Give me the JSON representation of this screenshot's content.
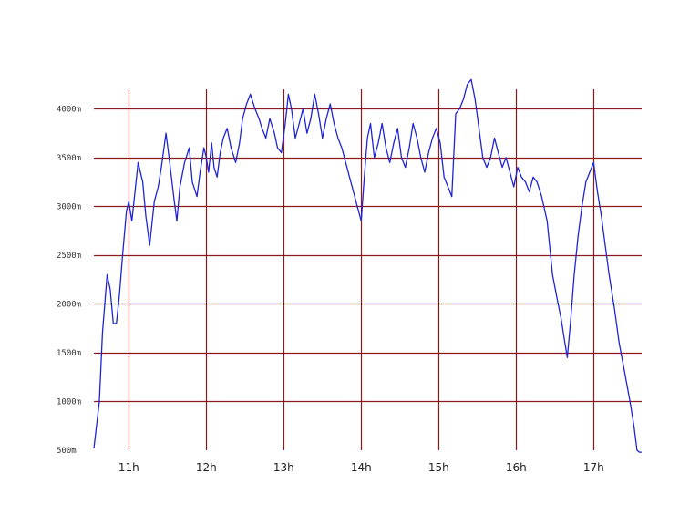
{
  "chart_data": {
    "type": "line",
    "title": "",
    "xlabel": "",
    "ylabel": "",
    "x_unit": "hour",
    "xlim": [
      10.55,
      17.62
    ],
    "ylim": [
      500,
      4200
    ],
    "x_ticks": [
      {
        "value": 11,
        "label": "11h"
      },
      {
        "value": 12,
        "label": "12h"
      },
      {
        "value": 13,
        "label": "13h"
      },
      {
        "value": 14,
        "label": "14h"
      },
      {
        "value": 15,
        "label": "15h"
      },
      {
        "value": 16,
        "label": "16h"
      },
      {
        "value": 17,
        "label": "17h"
      }
    ],
    "y_ticks": [
      {
        "value": 500,
        "label": "500m"
      },
      {
        "value": 1000,
        "label": "1000m"
      },
      {
        "value": 1500,
        "label": "1500m"
      },
      {
        "value": 2000,
        "label": "2000m"
      },
      {
        "value": 2500,
        "label": "2500m"
      },
      {
        "value": 3000,
        "label": "3000m"
      },
      {
        "value": 3500,
        "label": "3500m"
      },
      {
        "value": 4000,
        "label": "4000m"
      }
    ],
    "grid": true,
    "colors": {
      "series": "#1f24d6",
      "grid": "#8b1a1a",
      "background": "#ffffff"
    },
    "series": [
      {
        "x": [
          10.55,
          10.62,
          10.66,
          10.72,
          10.76,
          10.8,
          10.84,
          10.88,
          10.92,
          10.97,
          11.0,
          11.04,
          11.08,
          11.12,
          11.18,
          11.22,
          11.27,
          11.33,
          11.38,
          11.42,
          11.48,
          11.52,
          11.58,
          11.62,
          11.66,
          11.72,
          11.78,
          11.82,
          11.88,
          11.92,
          11.97,
          12.0,
          12.03,
          12.07,
          12.1,
          12.14,
          12.18,
          12.22,
          12.27,
          12.32,
          12.38,
          12.43,
          12.47,
          12.52,
          12.57,
          12.63,
          12.68,
          12.72,
          12.77,
          12.82,
          12.88,
          12.92,
          12.97,
          13.02,
          13.06,
          13.1,
          13.15,
          13.2,
          13.25,
          13.3,
          13.35,
          13.4,
          13.45,
          13.5,
          13.55,
          13.6,
          13.65,
          13.7,
          13.75,
          13.8,
          13.85,
          13.9,
          13.95,
          14.0,
          14.04,
          14.08,
          14.12,
          14.17,
          14.22,
          14.27,
          14.32,
          14.37,
          14.42,
          14.47,
          14.52,
          14.57,
          14.62,
          14.67,
          14.72,
          14.77,
          14.82,
          14.87,
          14.92,
          14.97,
          15.02,
          15.07,
          15.12,
          15.17,
          15.22,
          15.27,
          15.32,
          15.37,
          15.42,
          15.47,
          15.52,
          15.57,
          15.62,
          15.67,
          15.72,
          15.77,
          15.82,
          15.87,
          15.92,
          15.97,
          16.02,
          16.07,
          16.12,
          16.17,
          16.22,
          16.27,
          16.33,
          16.4,
          16.47,
          16.53,
          16.58,
          16.63,
          16.66,
          16.7,
          16.75,
          16.8,
          16.85,
          16.9,
          16.95,
          17.0,
          17.05,
          17.1,
          17.15,
          17.2,
          17.27,
          17.33,
          17.4,
          17.47,
          17.52,
          17.56,
          17.59,
          17.62
        ],
        "values": [
          520,
          1000,
          1700,
          2300,
          2150,
          1800,
          1800,
          2100,
          2500,
          2950,
          3050,
          2850,
          3150,
          3450,
          3250,
          2900,
          2600,
          3050,
          3200,
          3400,
          3750,
          3500,
          3100,
          2850,
          3200,
          3450,
          3600,
          3250,
          3100,
          3350,
          3600,
          3500,
          3350,
          3650,
          3400,
          3300,
          3550,
          3700,
          3800,
          3600,
          3450,
          3650,
          3900,
          4050,
          4150,
          4000,
          3900,
          3800,
          3700,
          3900,
          3750,
          3600,
          3550,
          3850,
          4150,
          4000,
          3700,
          3850,
          4000,
          3750,
          3900,
          4150,
          3950,
          3700,
          3900,
          4050,
          3850,
          3700,
          3600,
          3450,
          3300,
          3150,
          3000,
          2850,
          3300,
          3700,
          3850,
          3500,
          3650,
          3850,
          3600,
          3450,
          3650,
          3800,
          3500,
          3400,
          3600,
          3850,
          3700,
          3500,
          3350,
          3550,
          3700,
          3800,
          3650,
          3300,
          3200,
          3100,
          3950,
          4000,
          4100,
          4250,
          4300,
          4100,
          3800,
          3500,
          3400,
          3500,
          3700,
          3550,
          3400,
          3500,
          3350,
          3200,
          3400,
          3300,
          3250,
          3150,
          3300,
          3250,
          3100,
          2850,
          2300,
          2050,
          1850,
          1600,
          1450,
          1800,
          2300,
          2700,
          3000,
          3250,
          3350,
          3450,
          3150,
          2900,
          2600,
          2300,
          1950,
          1600,
          1300,
          1000,
          750,
          500,
          480,
          480
        ]
      }
    ]
  }
}
